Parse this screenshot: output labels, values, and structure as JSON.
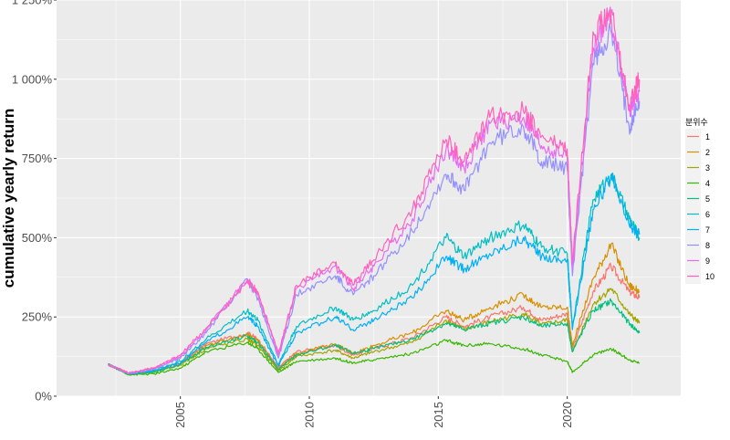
{
  "chart_data": {
    "type": "line",
    "title": "",
    "xlabel": "",
    "ylabel": "cumulative yearly return",
    "xlim": [
      2000.2,
      2024.4
    ],
    "ylim": [
      0,
      1250
    ],
    "x_ticks": [
      2005,
      2010,
      2015,
      2020
    ],
    "y_ticks": [
      0,
      250,
      500,
      750,
      1000,
      1250
    ],
    "y_tick_labels": [
      "0%",
      "250%",
      "500%",
      "750%",
      "1 000%",
      "1 250%"
    ],
    "grid": true,
    "legend": {
      "title": "분위수",
      "position": "right"
    },
    "series": [
      {
        "name": "1",
        "color": "#F8766D",
        "x": [
          2002.2,
          2003.0,
          2004.0,
          2005.0,
          2006.0,
          2007.6,
          2008.0,
          2008.8,
          2009.5,
          2011.0,
          2011.7,
          2012.5,
          2014.0,
          2015.3,
          2016.0,
          2017.0,
          2018.3,
          2019.0,
          2020.0,
          2020.2,
          2021.0,
          2021.7,
          2022.4,
          2022.8
        ],
        "y": [
          100,
          72,
          80,
          105,
          165,
          200,
          180,
          90,
          140,
          160,
          130,
          150,
          185,
          250,
          220,
          250,
          280,
          240,
          260,
          150,
          330,
          410,
          330,
          310
        ]
      },
      {
        "name": "2",
        "color": "#D89000",
        "x": [
          2002.2,
          2003.0,
          2004.0,
          2005.0,
          2006.0,
          2007.6,
          2008.0,
          2008.8,
          2009.5,
          2011.0,
          2011.7,
          2012.5,
          2014.0,
          2015.3,
          2016.0,
          2017.0,
          2018.3,
          2019.0,
          2020.0,
          2020.2,
          2021.0,
          2021.7,
          2022.4,
          2022.8
        ],
        "y": [
          100,
          70,
          78,
          100,
          160,
          195,
          175,
          85,
          135,
          165,
          135,
          160,
          200,
          270,
          240,
          280,
          320,
          280,
          280,
          160,
          370,
          480,
          350,
          330
        ]
      },
      {
        "name": "3",
        "color": "#A3A500",
        "x": [
          2002.2,
          2003.0,
          2004.0,
          2005.0,
          2006.0,
          2007.6,
          2008.0,
          2008.8,
          2009.5,
          2011.0,
          2011.7,
          2012.5,
          2014.0,
          2015.3,
          2016.0,
          2017.0,
          2018.3,
          2019.0,
          2020.0,
          2020.2,
          2021.0,
          2021.7,
          2022.4,
          2022.8
        ],
        "y": [
          100,
          70,
          75,
          98,
          150,
          180,
          160,
          80,
          125,
          145,
          120,
          140,
          170,
          240,
          210,
          235,
          260,
          225,
          240,
          140,
          290,
          340,
          260,
          230
        ]
      },
      {
        "name": "4",
        "color": "#39B600",
        "x": [
          2002.2,
          2003.0,
          2004.0,
          2005.0,
          2006.0,
          2007.6,
          2008.0,
          2008.8,
          2009.5,
          2011.0,
          2011.7,
          2012.5,
          2014.0,
          2015.3,
          2016.0,
          2017.0,
          2018.3,
          2019.0,
          2020.0,
          2020.2,
          2021.0,
          2021.7,
          2022.4,
          2022.8
        ],
        "y": [
          100,
          68,
          70,
          88,
          140,
          170,
          150,
          75,
          110,
          120,
          105,
          115,
          135,
          175,
          160,
          165,
          150,
          130,
          110,
          75,
          130,
          150,
          115,
          105
        ]
      },
      {
        "name": "5",
        "color": "#00BF7D",
        "x": [
          2002.2,
          2003.0,
          2004.0,
          2005.0,
          2006.0,
          2007.6,
          2008.0,
          2008.8,
          2009.5,
          2011.0,
          2011.7,
          2012.5,
          2014.0,
          2015.3,
          2016.0,
          2017.0,
          2018.3,
          2019.0,
          2020.0,
          2020.2,
          2021.0,
          2021.7,
          2022.4,
          2022.8
        ],
        "y": [
          100,
          70,
          76,
          100,
          155,
          190,
          170,
          85,
          130,
          160,
          135,
          150,
          180,
          230,
          210,
          230,
          250,
          220,
          230,
          140,
          270,
          300,
          230,
          200
        ]
      },
      {
        "name": "6",
        "color": "#00BFC4",
        "x": [
          2002.2,
          2003.0,
          2004.0,
          2005.0,
          2006.0,
          2007.6,
          2008.0,
          2008.8,
          2009.5,
          2011.0,
          2011.7,
          2012.5,
          2014.0,
          2015.3,
          2016.0,
          2017.0,
          2018.3,
          2019.0,
          2020.0,
          2020.2,
          2021.0,
          2021.7,
          2022.4,
          2022.8
        ],
        "y": [
          100,
          72,
          82,
          110,
          180,
          270,
          240,
          100,
          220,
          280,
          240,
          270,
          350,
          500,
          440,
          500,
          540,
          470,
          450,
          220,
          620,
          700,
          560,
          500
        ]
      },
      {
        "name": "7",
        "color": "#00B0F6",
        "x": [
          2002.2,
          2003.0,
          2004.0,
          2005.0,
          2006.0,
          2007.6,
          2008.0,
          2008.8,
          2009.5,
          2011.0,
          2011.7,
          2012.5,
          2014.0,
          2015.3,
          2016.0,
          2017.0,
          2018.3,
          2019.0,
          2020.0,
          2020.2,
          2021.0,
          2021.7,
          2022.4,
          2022.8
        ],
        "y": [
          100,
          70,
          80,
          105,
          170,
          250,
          220,
          95,
          200,
          250,
          210,
          240,
          310,
          440,
          400,
          450,
          500,
          440,
          430,
          210,
          590,
          690,
          540,
          510
        ]
      },
      {
        "name": "8",
        "color": "#9590FF",
        "x": [
          2002.2,
          2003.0,
          2004.0,
          2005.0,
          2006.0,
          2007.6,
          2008.0,
          2008.8,
          2009.5,
          2011.0,
          2011.7,
          2012.5,
          2014.0,
          2015.3,
          2016.0,
          2017.0,
          2018.3,
          2019.0,
          2020.0,
          2020.2,
          2021.0,
          2021.7,
          2022.4,
          2022.8
        ],
        "y": [
          100,
          72,
          85,
          120,
          200,
          370,
          310,
          120,
          320,
          380,
          320,
          380,
          520,
          700,
          650,
          800,
          850,
          740,
          720,
          380,
          1050,
          1150,
          850,
          930
        ]
      },
      {
        "name": "9",
        "color": "#E76BF3",
        "x": [
          2002.2,
          2003.0,
          2004.0,
          2005.0,
          2006.0,
          2007.6,
          2008.0,
          2008.8,
          2009.5,
          2011.0,
          2011.7,
          2012.5,
          2014.0,
          2015.3,
          2016.0,
          2017.0,
          2018.3,
          2019.0,
          2020.0,
          2020.2,
          2021.0,
          2021.7,
          2022.4,
          2022.8
        ],
        "y": [
          100,
          72,
          88,
          125,
          210,
          370,
          320,
          130,
          340,
          410,
          340,
          410,
          560,
          780,
          720,
          860,
          880,
          790,
          760,
          400,
          1100,
          1200,
          900,
          960
        ]
      },
      {
        "name": "10",
        "color": "#FF62BC",
        "x": [
          2002.2,
          2003.0,
          2004.0,
          2005.0,
          2006.0,
          2007.6,
          2008.0,
          2008.8,
          2009.5,
          2011.0,
          2011.7,
          2012.5,
          2014.0,
          2015.3,
          2016.0,
          2017.0,
          2018.3,
          2019.0,
          2020.0,
          2020.2,
          2021.0,
          2021.7,
          2022.4,
          2022.8
        ],
        "y": [
          100,
          73,
          90,
          130,
          215,
          360,
          330,
          135,
          350,
          420,
          350,
          430,
          590,
          810,
          740,
          880,
          900,
          820,
          780,
          420,
          1150,
          1210,
          920,
          1000
        ]
      }
    ]
  }
}
